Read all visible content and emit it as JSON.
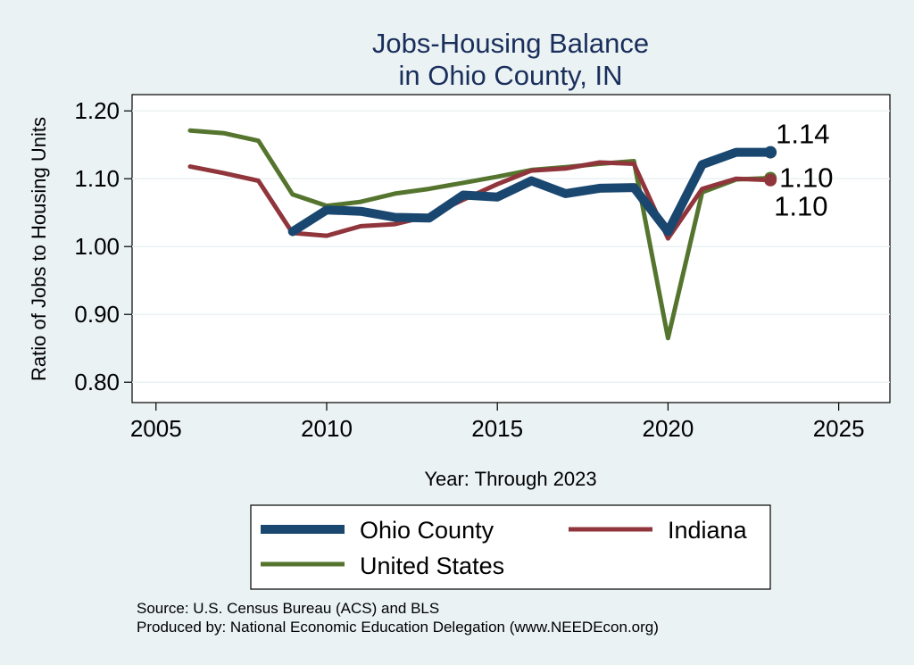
{
  "chart_data": {
    "type": "line",
    "title": [
      "Jobs-Housing Balance",
      "in Ohio County, IN"
    ],
    "xlabel": "Year: Through 2023",
    "ylabel": "Ratio of Jobs to Housing Units",
    "xlim": [
      2004.3,
      2026.5
    ],
    "ylim": [
      0.77,
      1.224
    ],
    "xticks": [
      2005,
      2010,
      2015,
      2020,
      2025
    ],
    "yticks": [
      0.8,
      0.9,
      1.0,
      1.1,
      1.2
    ],
    "ytick_labels": [
      "0.80",
      "0.90",
      "1.00",
      "1.10",
      "1.20"
    ],
    "grid": true,
    "legend_position": "bottom",
    "series": [
      {
        "name": "United States",
        "color": "#55752f",
        "x": [
          2006,
          2007,
          2008,
          2009,
          2010,
          2011,
          2012,
          2013,
          2014,
          2015,
          2016,
          2017,
          2018,
          2019,
          2020,
          2021,
          2022,
          2023
        ],
        "values": [
          1.171,
          1.167,
          1.156,
          1.077,
          1.06,
          1.066,
          1.078,
          1.085,
          1.094,
          1.103,
          1.113,
          1.117,
          1.122,
          1.126,
          0.865,
          1.08,
          1.099,
          1.101
        ],
        "end_label": "1.10"
      },
      {
        "name": "Indiana",
        "color": "#90353b",
        "x": [
          2006,
          2007,
          2008,
          2009,
          2010,
          2011,
          2012,
          2013,
          2014,
          2015,
          2016,
          2017,
          2018,
          2019,
          2020,
          2021,
          2022,
          2023
        ],
        "values": [
          1.118,
          1.108,
          1.097,
          1.02,
          1.016,
          1.03,
          1.033,
          1.045,
          1.069,
          1.092,
          1.112,
          1.115,
          1.124,
          1.122,
          1.012,
          1.085,
          1.1,
          1.098
        ],
        "end_label": "1.10"
      },
      {
        "name": "Ohio County",
        "color": "#1a476f",
        "x": [
          2009,
          2010,
          2011,
          2012,
          2013,
          2014,
          2015,
          2016,
          2017,
          2018,
          2019,
          2020,
          2021,
          2022,
          2023
        ],
        "values": [
          1.022,
          1.054,
          1.052,
          1.043,
          1.042,
          1.076,
          1.073,
          1.097,
          1.078,
          1.086,
          1.087,
          1.022,
          1.121,
          1.139,
          1.139
        ],
        "end_label": "1.14"
      }
    ],
    "legend": [
      {
        "name": "Ohio County",
        "color": "#1a476f"
      },
      {
        "name": "Indiana",
        "color": "#90353b"
      },
      {
        "name": "United States",
        "color": "#55752f"
      }
    ]
  },
  "source_lines": [
    "Source: U.S. Census Bureau (ACS) and BLS",
    "Produced by: National Economic Education Delegation (www.NEEDEcon.org)"
  ]
}
